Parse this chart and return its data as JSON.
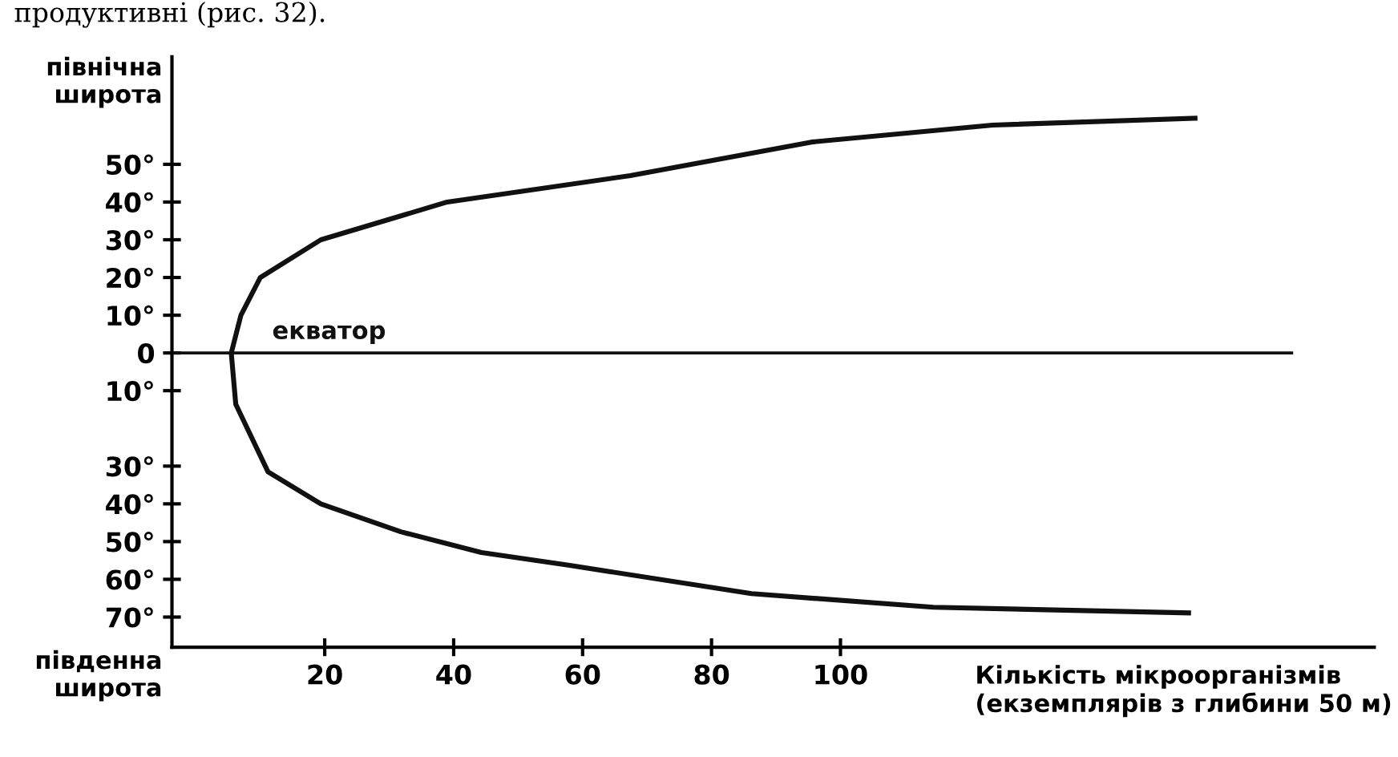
{
  "chart_data": {
    "type": "line",
    "ylabel": "північна\nширота",
    "xlabel": "Кількість мікроорганізмів\n(екземплярів з глибини 50 м)",
    "annotations": [
      "південна\nширота",
      "продуктивні (рис. 32)."
    ],
    "series": [
      {
        "color": "#111111",
        "x": [
          155,
          123.6,
          95.5,
          67.4,
          39,
          19.4,
          10,
          7,
          5.5,
          6.2,
          11.2,
          19.4,
          31.8,
          44.3,
          58,
          86.2,
          114.4,
          154
        ],
        "values": [
          62.2,
          60.4,
          55.9,
          47,
          40,
          30,
          20,
          10,
          0,
          -13.6,
          -31.5,
          -40,
          -47.4,
          -52.9,
          -56.3,
          -63.8,
          -67.4,
          -68.9
        ]
      },
      {
        "name": "екватор",
        "color": "#111111",
        "x": [
          -3.7,
          170
        ],
        "values": [
          0,
          0
        ]
      }
    ],
    "xlim": [
      -3.7,
      182.8
    ],
    "ylim": [
      -78,
      78.5
    ],
    "xticks": [
      20,
      40,
      60,
      80,
      100
    ],
    "yticks": [
      {
        "value": 50,
        "label": "50°"
      },
      {
        "value": 40,
        "label": "40°"
      },
      {
        "value": 30,
        "label": "30°"
      },
      {
        "value": 20,
        "label": "20°"
      },
      {
        "value": 10,
        "label": "10°"
      },
      {
        "value": 0,
        "label": "0"
      },
      {
        "value": -10,
        "label": "10°"
      },
      {
        "value": -30,
        "label": "30°"
      },
      {
        "value": -40,
        "label": "40°"
      },
      {
        "value": -50,
        "label": "50°"
      },
      {
        "value": -60,
        "label": "60°"
      },
      {
        "value": -70,
        "label": "70°"
      }
    ],
    "grid": false,
    "legend": false,
    "marker": "none",
    "line_style": "solid"
  }
}
